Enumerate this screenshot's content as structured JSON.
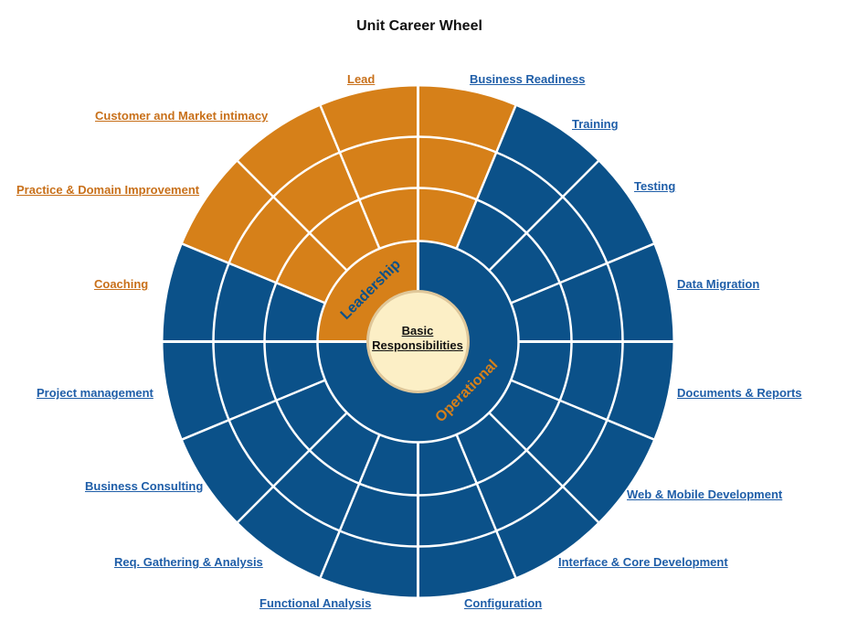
{
  "title": "Unit Career Wheel",
  "core": {
    "line1": "Basic",
    "line2": "Responsibilities"
  },
  "colors": {
    "leadership": "#d68019",
    "operational": "#0b5189",
    "core_fill": "#fcefc6",
    "core_ring": "#dfc79a",
    "divider": "#ffffff",
    "leadership_text": "#c8701a",
    "operational_text": "#1f5ea8",
    "ring_label_leadership": "#0b5189",
    "ring_label_operational": "#d68019"
  },
  "rings": {
    "leadership": "Leadership",
    "operational": "Operational"
  },
  "segments": [
    {
      "label": "Lead",
      "group": "leadership"
    },
    {
      "label": "Business Readiness",
      "group": "operational"
    },
    {
      "label": "Training",
      "group": "operational"
    },
    {
      "label": "Testing",
      "group": "operational"
    },
    {
      "label": "Data Migration",
      "group": "operational"
    },
    {
      "label": "Documents & Reports",
      "group": "operational"
    },
    {
      "label": "Web & Mobile Development",
      "group": "operational"
    },
    {
      "label": "Interface & Core Development",
      "group": "operational"
    },
    {
      "label": "Configuration",
      "group": "operational"
    },
    {
      "label": "Functional Analysis",
      "group": "operational"
    },
    {
      "label": "Req. Gathering & Analysis",
      "group": "operational"
    },
    {
      "label": "Business Consulting",
      "group": "operational"
    },
    {
      "label": "Project management",
      "group": "operational"
    },
    {
      "label": "Coaching",
      "group": "leadership"
    },
    {
      "label": "Practice & Domain Improvement",
      "group": "leadership"
    },
    {
      "label": "Customer and Market intimacy",
      "group": "leadership"
    }
  ]
}
